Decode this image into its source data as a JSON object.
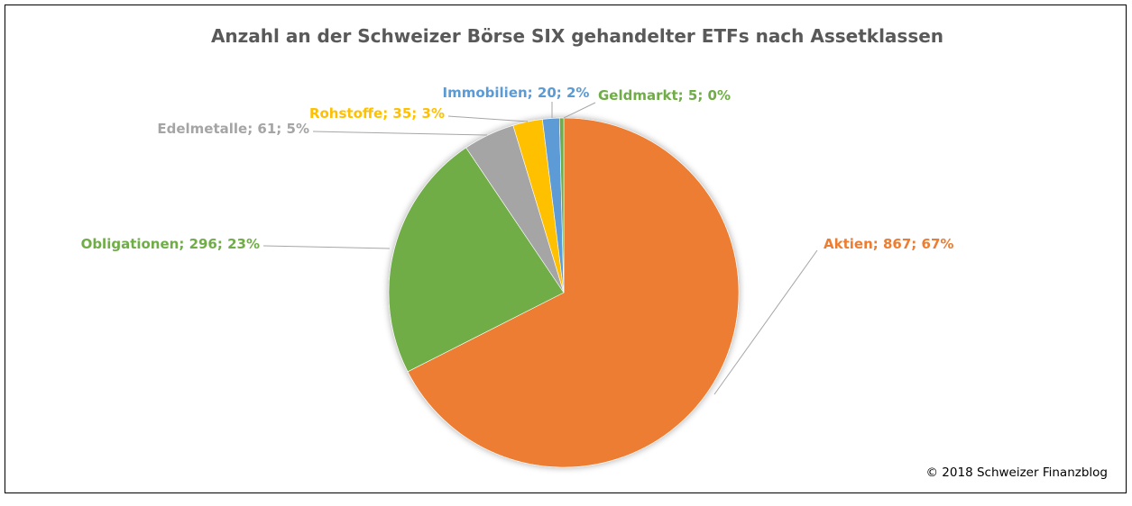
{
  "chart_data": {
    "type": "pie",
    "title": "Anzahl an der Schweizer Börse SIX gehandelter ETFs nach Assetklassen",
    "start_angle": "12 o'clock, clockwise",
    "slices": [
      {
        "name": "Aktien",
        "value": 867,
        "percent": "67%",
        "label": "Aktien; 867; 67%",
        "color": "#ED7D31"
      },
      {
        "name": "Obligationen",
        "value": 296,
        "percent": "23%",
        "label": "Obligationen; 296; 23%",
        "color": "#70AD47"
      },
      {
        "name": "Edelmetalle",
        "value": 61,
        "percent": "5%",
        "label": "Edelmetalle; 61; 5%",
        "color": "#A5A5A5"
      },
      {
        "name": "Rohstoffe",
        "value": 35,
        "percent": "3%",
        "label": "Rohstoffe; 35; 3%",
        "color": "#FFC000"
      },
      {
        "name": "Immobilien",
        "value": 20,
        "percent": "2%",
        "label": "Immobilien; 20; 2%",
        "color": "#5B9BD5"
      },
      {
        "name": "Geldmarkt",
        "value": 5,
        "percent": "0%",
        "label": "Geldmarkt; 5; 0%",
        "color": "#70AD47"
      }
    ]
  },
  "footer": {
    "copyright": "© 2018 Schweizer Finanzblog"
  }
}
